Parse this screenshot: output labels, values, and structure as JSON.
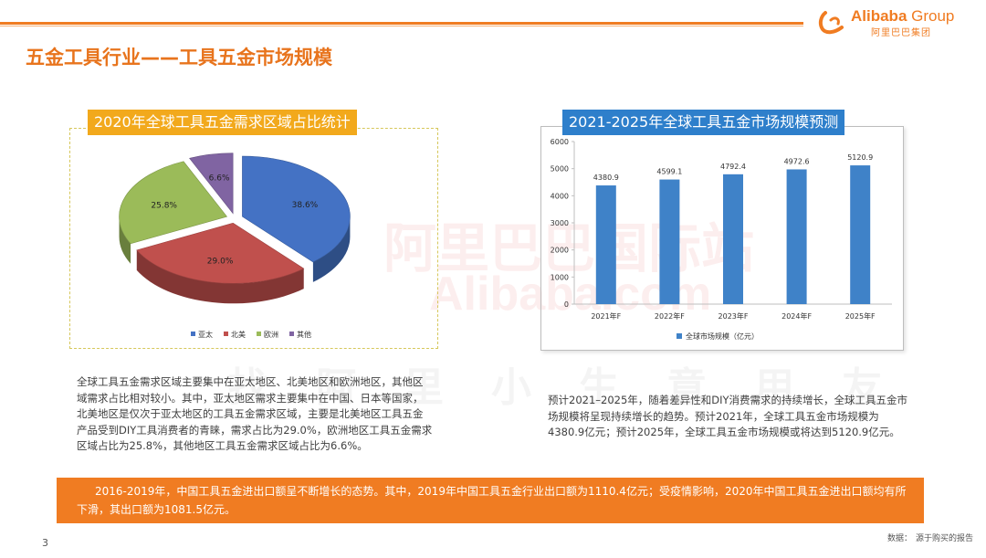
{
  "header": {
    "page_title": "五金工具行业——工具五金市场规模",
    "logo_name": "Alibaba",
    "logo_group": "Group",
    "logo_sub": "阿里巴巴集团"
  },
  "watermark": {
    "line1": "阿里巴巴国际站",
    "line2": "Alibaba.com",
    "line3": "找阿里小生意用友"
  },
  "colors": {
    "accent": "#f07c22",
    "badge_yellow": "#f2a91c",
    "badge_blue": "#2e7fcb",
    "bar_blue": "#3f82c8"
  },
  "chart_data": [
    {
      "type": "pie",
      "title": "2020年全球工具五金需求区域占比统计",
      "categories": [
        "亚太",
        "北美",
        "欧洲",
        "其他"
      ],
      "values": [
        38.6,
        29.0,
        25.8,
        6.6
      ],
      "data_labels": [
        "38.6%",
        "29.0%",
        "25.8%",
        "6.6%"
      ],
      "colors": [
        "#4472c4",
        "#c0504d",
        "#9bbb59",
        "#8064a2"
      ],
      "legend_position": "bottom"
    },
    {
      "type": "bar",
      "title": "2021-2025年全球工具五金市场规模预测",
      "categories": [
        "2021年F",
        "2022年F",
        "2023年F",
        "2024年F",
        "2025年F"
      ],
      "series": [
        {
          "name": "全球市场规模（亿元）",
          "values": [
            4380.9,
            4599.1,
            4792.4,
            4972.6,
            5120.9
          ]
        }
      ],
      "data_labels": [
        "4380.9",
        "4599.1",
        "4792.4",
        "4972.6",
        "5120.9"
      ],
      "ylim": [
        0,
        6000
      ],
      "yticks": [
        "0",
        "1000",
        "2000",
        "3000",
        "4000",
        "5000",
        "6000"
      ],
      "grid": false,
      "legend_position": "bottom"
    }
  ],
  "text": {
    "para_left": "全球工具五金需求区域主要集中在亚太地区、北美地区和欧洲地区，其他区域需求占比相对较小。其中，亚太地区需求主要集中在中国、日本等国家，北美地区是仅次于亚太地区的工具五金需求区域，主要是北美地区工具五金产品受到DIY工具消费者的青睐，需求占比为29.0%，欧洲地区工具五金需求区域占比为25.8%，其他地区工具五金需求区域占比为6.6%。",
    "para_right": "预计2021–2025年，随着差异性和DIY消费需求的持续增长，全球工具五金市场规模将呈现持续增长的趋势。预计2021年，全球工具五金市场规模为4380.9亿元；预计2025年，全球工具五金市场规模或将达到5120.9亿元。",
    "bottom_bar": "2016-2019年，中国工具五金进出口额呈不断增长的态势。其中，2019年中国工具五金行业出口额为1110.4亿元；受疫情影响，2020年中国工具五金进出口额均有所下滑，其出口额为1081.5亿元。"
  },
  "footer": {
    "page_number": "3",
    "source_label": "数据：",
    "source_text": "源于购买的报告"
  }
}
